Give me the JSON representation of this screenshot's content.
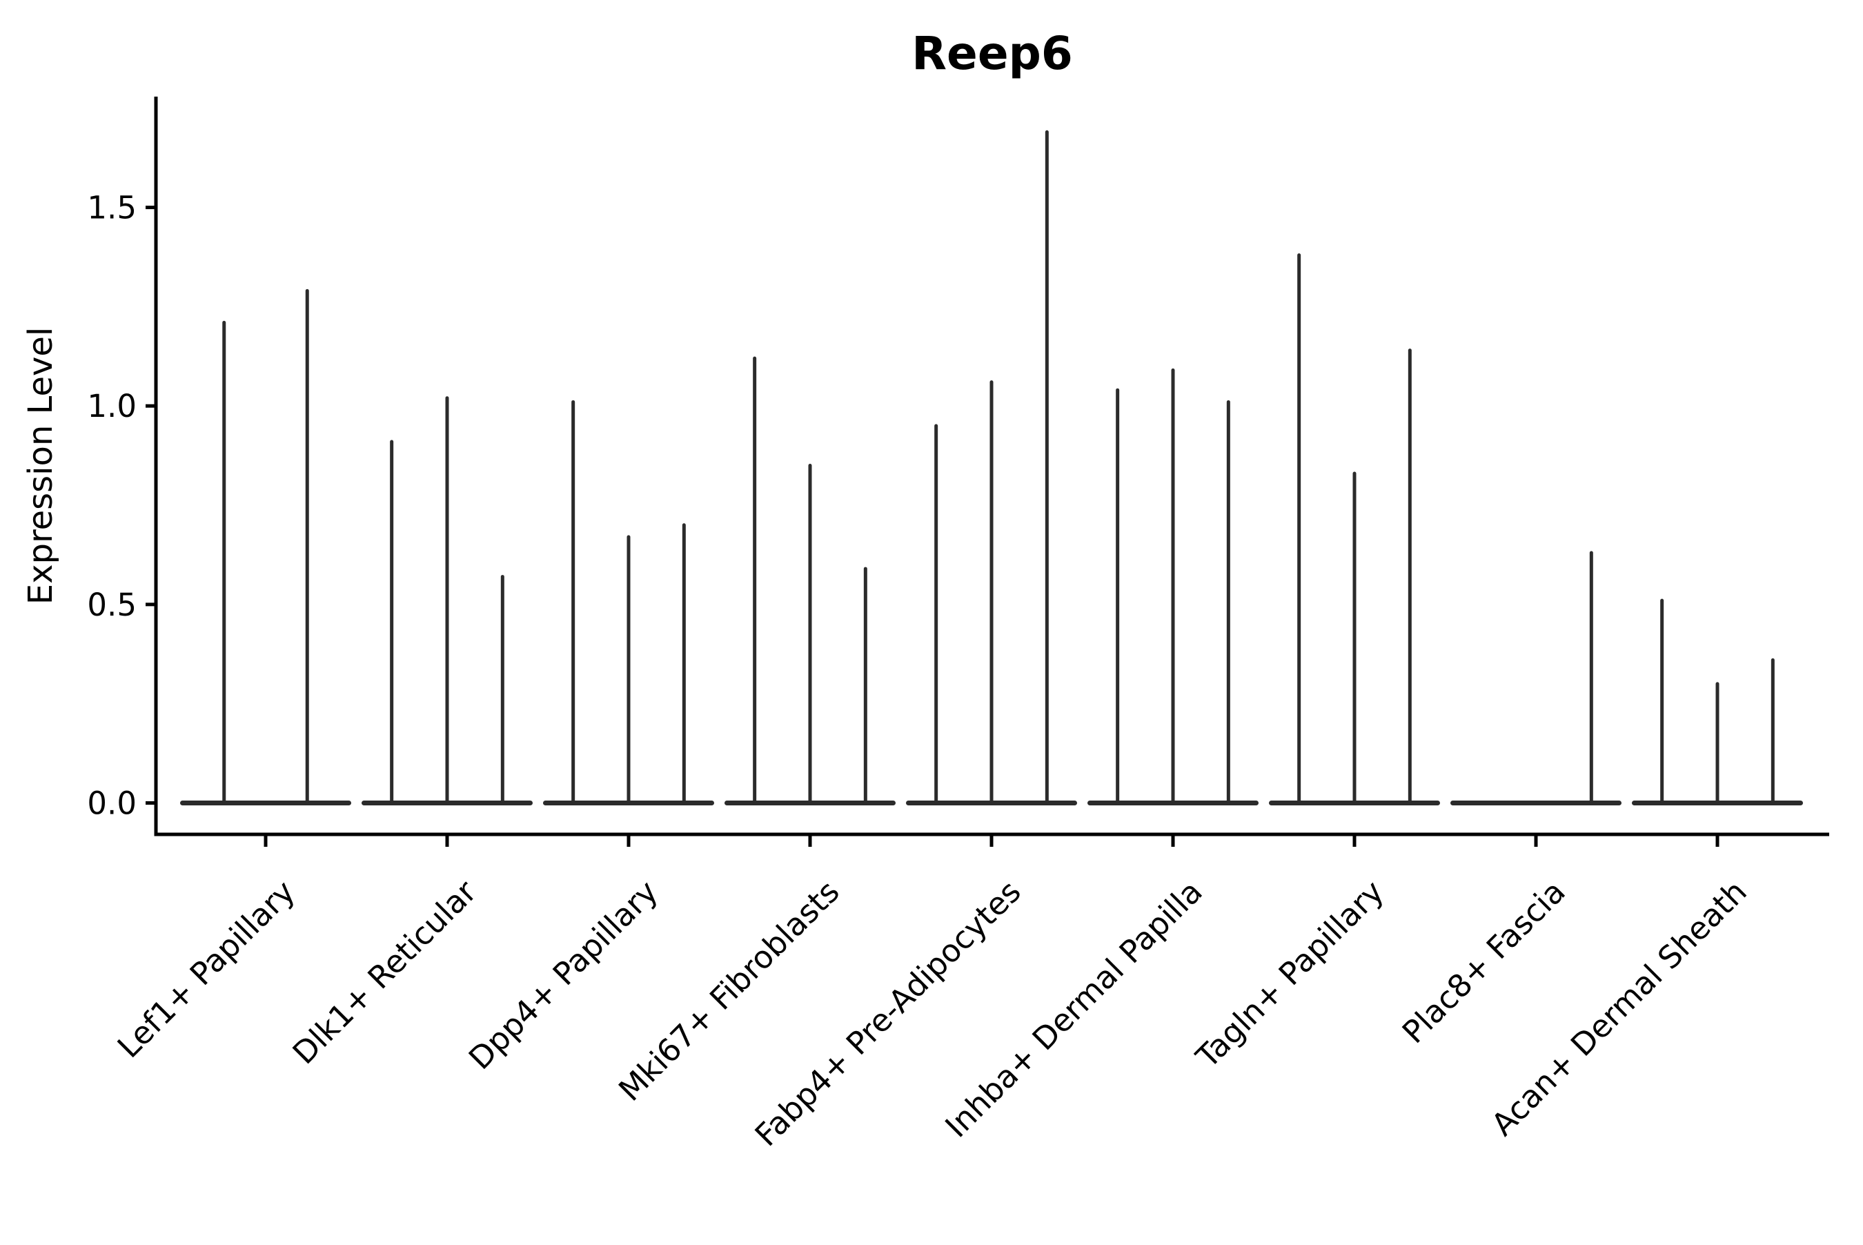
{
  "chart_data": {
    "type": "violin",
    "title": "Reep6",
    "xlabel": "",
    "ylabel": "Expression Level",
    "yticks": [
      0.0,
      0.5,
      1.0,
      1.5
    ],
    "ytick_labels": [
      "0.0",
      "0.5",
      "1.0",
      "1.5"
    ],
    "ylim": [
      -0.08,
      1.78
    ],
    "grid": false,
    "legend": "none",
    "style_note": "very thin spike-shaped violins with flat base at 0; 2-3 violins per category",
    "categories": [
      "Lef1+ Papillary",
      "Dlk1+ Reticular",
      "Dpp4+ Papillary",
      "Mki67+ Fibroblasts",
      "Fabp4+ Pre-Adipocytes",
      "Inhba+ Dermal Papilla",
      "Tagln+ Papillary",
      "Plac8+ Fascia",
      "Acan+ Dermal Sheath"
    ],
    "groups": [
      {
        "category": "Lef1+ Papillary",
        "violin_max": [
          1.21,
          1.29
        ]
      },
      {
        "category": "Dlk1+ Reticular",
        "violin_max": [
          0.91,
          1.02,
          0.57
        ]
      },
      {
        "category": "Dpp4+ Papillary",
        "violin_max": [
          1.01,
          0.67,
          0.7
        ]
      },
      {
        "category": "Mki67+ Fibroblasts",
        "violin_max": [
          1.12,
          0.85,
          0.59
        ]
      },
      {
        "category": "Fabp4+ Pre-Adipocytes",
        "violin_max": [
          0.95,
          1.06,
          1.69
        ]
      },
      {
        "category": "Inhba+ Dermal Papilla",
        "violin_max": [
          1.04,
          1.09,
          1.01
        ]
      },
      {
        "category": "Tagln+ Papillary",
        "violin_max": [
          1.38,
          0.83,
          1.14
        ]
      },
      {
        "category": "Plac8+ Fascia",
        "violin_max": [
          0,
          0,
          0.63
        ]
      },
      {
        "category": "Acan+ Dermal Sheath",
        "violin_max": [
          0.51,
          0.3,
          0.36
        ]
      }
    ]
  },
  "colors": {
    "violin_stroke": "#2b2b2b",
    "axis": "#000000",
    "text": "#000000",
    "background": "#ffffff"
  }
}
